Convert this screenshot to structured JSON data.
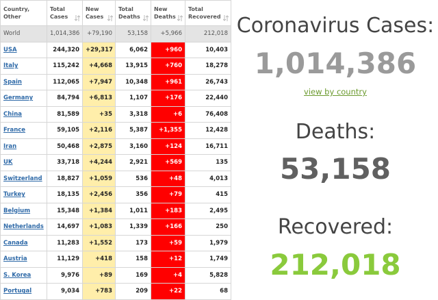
{
  "table": {
    "header": [
      [
        "Country,",
        "Other"
      ],
      [
        "Total",
        "Cases"
      ],
      [
        "New",
        "Cases"
      ],
      [
        "Total",
        "Deaths"
      ],
      [
        "New",
        "Deaths"
      ],
      [
        "Total",
        "Recovered"
      ]
    ],
    "world": [
      "World",
      "1,014,386",
      "+79,190",
      "53,158",
      "+5,966",
      "212,018"
    ],
    "rows": [
      [
        "USA",
        "244,320",
        "+29,317",
        "6,062",
        "+960",
        "10,403"
      ],
      [
        "Italy",
        "115,242",
        "+4,668",
        "13,915",
        "+760",
        "18,278"
      ],
      [
        "Spain",
        "112,065",
        "+7,947",
        "10,348",
        "+961",
        "26,743"
      ],
      [
        "Germany",
        "84,794",
        "+6,813",
        "1,107",
        "+176",
        "22,440"
      ],
      [
        "China",
        "81,589",
        "+35",
        "3,318",
        "+6",
        "76,408"
      ],
      [
        "France",
        "59,105",
        "+2,116",
        "5,387",
        "+1,355",
        "12,428"
      ],
      [
        "Iran",
        "50,468",
        "+2,875",
        "3,160",
        "+124",
        "16,711"
      ],
      [
        "UK",
        "33,718",
        "+4,244",
        "2,921",
        "+569",
        "135"
      ],
      [
        "Switzerland",
        "18,827",
        "+1,059",
        "536",
        "+48",
        "4,013"
      ],
      [
        "Turkey",
        "18,135",
        "+2,456",
        "356",
        "+79",
        "415"
      ],
      [
        "Belgium",
        "15,348",
        "+1,384",
        "1,011",
        "+183",
        "2,495"
      ],
      [
        "Netherlands",
        "14,697",
        "+1,083",
        "1,339",
        "+166",
        "250"
      ],
      [
        "Canada",
        "11,283",
        "+1,552",
        "173",
        "+59",
        "1,979"
      ],
      [
        "Austria",
        "11,129",
        "+418",
        "158",
        "+12",
        "1,749"
      ],
      [
        "S. Korea",
        "9,976",
        "+89",
        "169",
        "+4",
        "5,828"
      ],
      [
        "Portugal",
        "9,034",
        "+783",
        "209",
        "+22",
        "68"
      ]
    ]
  },
  "summary": {
    "cases_label": "Coronavirus Cases:",
    "cases": "1,014,386",
    "link": "view by country",
    "deaths_label": "Deaths:",
    "deaths": "53,158",
    "recovered_label": "Recovered:",
    "recovered": "212,018"
  }
}
